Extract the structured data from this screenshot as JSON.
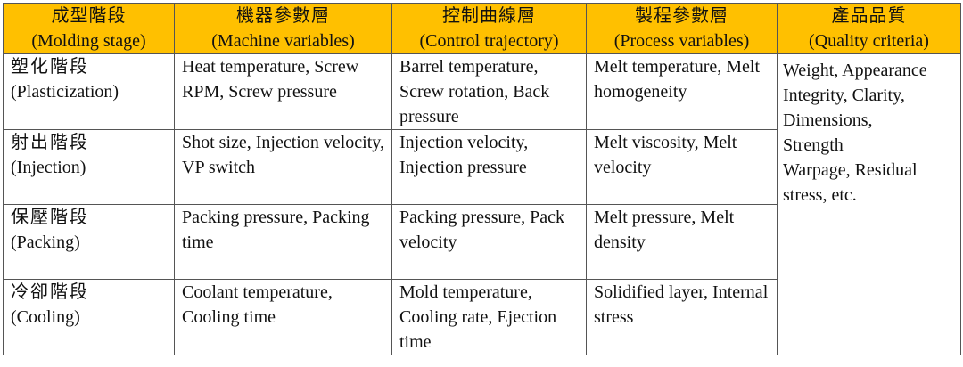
{
  "header": {
    "columns": [
      {
        "zh": "成型階段",
        "en": "(Molding stage)"
      },
      {
        "zh": "機器參數層",
        "en": "(Machine variables)"
      },
      {
        "zh": "控制曲線層",
        "en": "(Control trajectory)"
      },
      {
        "zh": "製程參數層",
        "en": "(Process variables)"
      },
      {
        "zh": "產品品質",
        "en": "(Quality criteria)"
      }
    ]
  },
  "rows": [
    {
      "stage_zh": "塑化階段",
      "stage_en": "(Plasticization)",
      "machine": "Heat temperature, Screw RPM, Screw pressure",
      "control": "Barrel temperature, Screw rotation, Back pressure",
      "process": "Melt temperature, Melt homogeneity"
    },
    {
      "stage_zh": "射出階段",
      "stage_en": "(Injection)",
      "machine": "Shot size, Injection velocity, VP switch",
      "control": "Injection velocity, Injection pressure",
      "process": "Melt viscosity, Melt velocity"
    },
    {
      "stage_zh": "保壓階段",
      "stage_en": "(Packing)",
      "machine": "Packing pressure, Packing time",
      "control": "Packing pressure, Pack velocity",
      "process": "Melt pressure, Melt density"
    },
    {
      "stage_zh": "冷卻階段",
      "stage_en": "(Cooling)",
      "machine": "Coolant temperature, Cooling time",
      "control": "Mold temperature, Cooling rate, Ejection time",
      "process": "Solidified layer, Internal stress"
    }
  ],
  "quality": {
    "lines": [
      "Weight, Appearance",
      "Integrity, Clarity,",
      "Dimensions,",
      "Strength",
      "Warpage, Residual",
      "stress, etc."
    ]
  },
  "colors": {
    "header_bg": "#ffc000",
    "border": "#555555",
    "text": "#111111"
  }
}
